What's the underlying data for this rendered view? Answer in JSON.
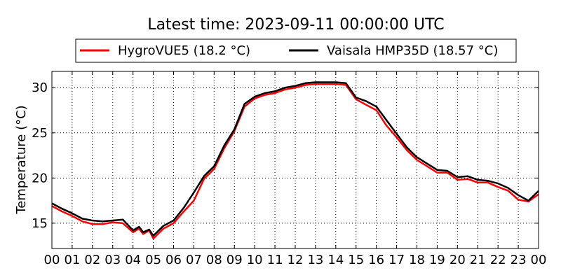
{
  "chart_data": {
    "type": "line",
    "title": "Latest time: 2023-09-11 00:00:00 UTC",
    "xlabel": "",
    "ylabel": "Temperature (°C)",
    "xlim": [
      0,
      24
    ],
    "ylim": [
      12.2,
      31.8
    ],
    "grid": true,
    "legend_position": "top",
    "x_ticks": [
      "00",
      "01",
      "02",
      "03",
      "04",
      "05",
      "06",
      "07",
      "08",
      "09",
      "10",
      "11",
      "12",
      "13",
      "14",
      "15",
      "16",
      "17",
      "18",
      "19",
      "20",
      "21",
      "22",
      "23",
      "00"
    ],
    "y_ticks": [
      15,
      20,
      25,
      30
    ],
    "x": [
      0,
      0.5,
      1,
      1.5,
      2,
      2.5,
      3,
      3.5,
      4,
      4.3,
      4.5,
      4.8,
      5,
      5.5,
      6,
      6.5,
      7,
      7.5,
      8,
      8.5,
      9,
      9.5,
      10,
      10.5,
      11,
      11.5,
      12,
      12.5,
      13,
      13.5,
      14,
      14.5,
      15,
      15.5,
      16,
      16.5,
      17,
      17.5,
      18,
      18.5,
      19,
      19.5,
      20,
      20.5,
      21,
      21.5,
      22,
      22.5,
      23,
      23.5,
      24
    ],
    "series": [
      {
        "name": "HygroVUE5 (18.2 °C)",
        "color": "#ff0000",
        "values": [
          16.9,
          16.3,
          15.8,
          15.2,
          14.9,
          14.9,
          15.1,
          15.0,
          14.0,
          14.4,
          13.8,
          14.2,
          13.3,
          14.4,
          15.0,
          16.3,
          17.5,
          19.9,
          21.0,
          23.3,
          25.2,
          27.9,
          28.8,
          29.2,
          29.4,
          29.8,
          30.0,
          30.3,
          30.4,
          30.4,
          30.4,
          30.3,
          28.7,
          28.1,
          27.5,
          25.8,
          24.5,
          23.1,
          22.0,
          21.3,
          20.6,
          20.6,
          19.8,
          19.9,
          19.5,
          19.5,
          19.0,
          18.6,
          17.6,
          17.4,
          18.2
        ]
      },
      {
        "name": "Vaisala HMP35D (18.57 °C)",
        "color": "#000000",
        "values": [
          17.2,
          16.6,
          16.1,
          15.5,
          15.3,
          15.2,
          15.3,
          15.4,
          14.2,
          14.6,
          14.0,
          14.3,
          13.6,
          14.7,
          15.3,
          16.7,
          18.4,
          20.2,
          21.3,
          23.6,
          25.4,
          28.2,
          29.0,
          29.4,
          29.6,
          30.0,
          30.2,
          30.5,
          30.6,
          30.6,
          30.6,
          30.5,
          28.9,
          28.5,
          27.9,
          26.4,
          24.9,
          23.4,
          22.3,
          21.6,
          20.9,
          20.8,
          20.1,
          20.2,
          19.8,
          19.7,
          19.4,
          18.9,
          18.1,
          17.5,
          18.57
        ]
      }
    ]
  }
}
